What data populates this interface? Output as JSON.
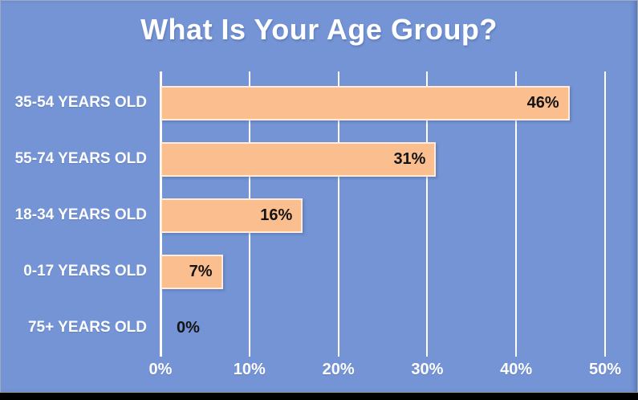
{
  "chart_data": {
    "type": "bar",
    "orientation": "horizontal",
    "title": "What Is Your Age Group?",
    "categories": [
      "35-54 YEARS OLD",
      "55-74 YEARS OLD",
      "18-34 YEARS OLD",
      "0-17 YEARS OLD",
      "75+ YEARS OLD"
    ],
    "values": [
      46,
      31,
      16,
      7,
      0
    ],
    "value_labels": [
      "46%",
      "31%",
      "16%",
      "7%",
      "0%"
    ],
    "x_ticks": [
      0,
      10,
      20,
      30,
      40,
      50
    ],
    "x_tick_labels": [
      "0%",
      "10%",
      "20%",
      "30%",
      "40%",
      "50%"
    ],
    "xlim": [
      0,
      50
    ],
    "grid": true,
    "legend": "none",
    "colors": {
      "bg": "#7494D6",
      "bar": "#FBBE8E",
      "grid": "#FFFFFF",
      "title": "#FFFFFF",
      "label": "#FFFFFF",
      "tick": "#FFFFFF",
      "value": "#141414",
      "strip": "#000000"
    }
  }
}
